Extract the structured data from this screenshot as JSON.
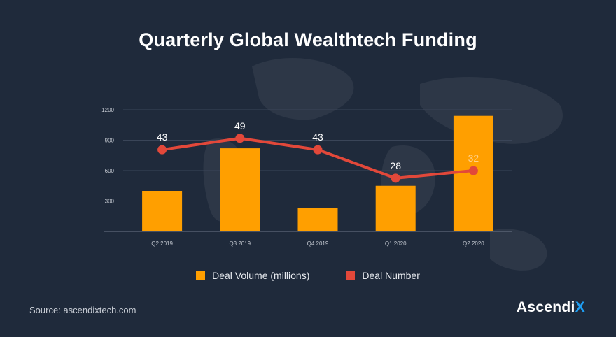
{
  "title": "Quarterly Global Wealthtech Funding",
  "chart_data": {
    "type": "bar",
    "categories": [
      "Q2 2019",
      "Q3 2019",
      "Q4 2019",
      "Q1 2020",
      "Q2 2020"
    ],
    "ylim": [
      0,
      1200
    ],
    "yticks": [
      300,
      600,
      900,
      1200
    ],
    "series": [
      {
        "name": "Deal Volume (millions)",
        "type": "bar",
        "values": [
          400,
          820,
          230,
          450,
          1140
        ]
      },
      {
        "name": "Deal Number",
        "type": "line",
        "values": [
          43,
          49,
          43,
          28,
          32
        ],
        "labels": [
          "43",
          "49",
          "43",
          "28",
          "32"
        ]
      }
    ],
    "line_scale": [
      0,
      64
    ],
    "legend": "bottom"
  },
  "colors": {
    "bar": "#ff9f00",
    "line": "#e2483a",
    "background": "#1f2a3b",
    "gridline": "#3a4558",
    "tick_text": "#c3c8d0",
    "label_highlight": "#ffd08a"
  },
  "legend": {
    "volume_label": "Deal Volume (millions)",
    "number_label": "Deal Number"
  },
  "footer": {
    "source": "Source: ascendixtech.com",
    "brand_main": "Ascendi",
    "brand_accent": "X"
  }
}
